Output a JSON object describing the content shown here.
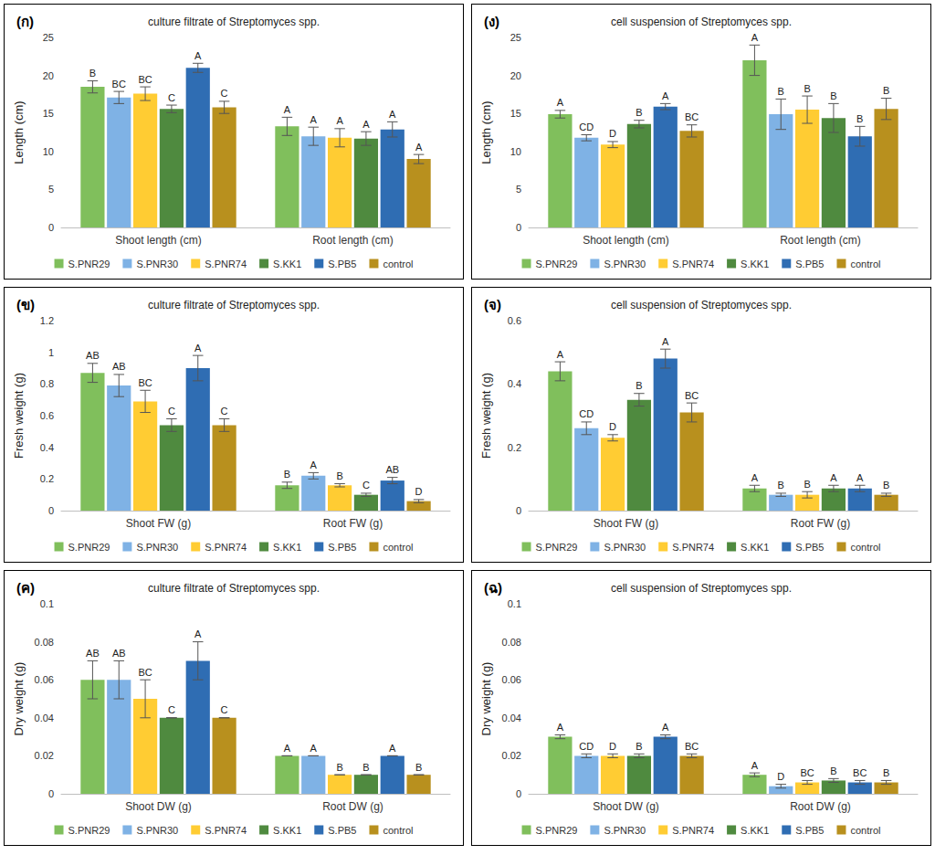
{
  "chart_data": [
    {
      "type": "bar",
      "panel_label": "(ก)",
      "title": "culture filtrate of Streptomyces spp.",
      "ylabel": "Length (cm)",
      "categories": [
        "Shoot length (cm)",
        "Root length (cm)"
      ],
      "series": [
        {
          "name": "S.PNR29",
          "color": "#80bf5c",
          "values": [
            18.5,
            13.3
          ],
          "errors": [
            0.8,
            1.2
          ],
          "letters": [
            "B",
            "A"
          ]
        },
        {
          "name": "S.PNR30",
          "color": "#7fb2e5",
          "values": [
            17.1,
            12.0
          ],
          "errors": [
            0.8,
            1.2
          ],
          "letters": [
            "BC",
            "A"
          ]
        },
        {
          "name": "S.PNR74",
          "color": "#ffcc33",
          "values": [
            17.6,
            11.8
          ],
          "errors": [
            0.9,
            1.2
          ],
          "letters": [
            "BC",
            "A"
          ]
        },
        {
          "name": "S.KK1",
          "color": "#4f8a3f",
          "values": [
            15.6,
            11.7
          ],
          "errors": [
            0.5,
            0.9
          ],
          "letters": [
            "C",
            "A"
          ]
        },
        {
          "name": "S.PB5",
          "color": "#2f6db3",
          "values": [
            21.0,
            12.9
          ],
          "errors": [
            0.6,
            1.0
          ],
          "letters": [
            "A",
            "A"
          ]
        },
        {
          "name": "control",
          "color": "#b8901e",
          "values": [
            15.8,
            9.0
          ],
          "errors": [
            0.8,
            0.6
          ],
          "letters": [
            "C",
            "A"
          ]
        }
      ],
      "ylim": [
        0,
        25
      ],
      "yticks": [
        0,
        5,
        10,
        15,
        20,
        25
      ],
      "grid": false,
      "legend": "bottom"
    },
    {
      "type": "bar",
      "panel_label": "(ง)",
      "title": "cell suspension of Streptomyces spp.",
      "ylabel": "Length (cm)",
      "categories": [
        "Shoot length (cm)",
        "Root length (cm)"
      ],
      "series": [
        {
          "name": "S.PNR29",
          "color": "#80bf5c",
          "values": [
            14.9,
            22.0
          ],
          "errors": [
            0.5,
            2.0
          ],
          "letters": [
            "A",
            "A"
          ]
        },
        {
          "name": "S.PNR30",
          "color": "#7fb2e5",
          "values": [
            11.8,
            14.9
          ],
          "errors": [
            0.4,
            2.0
          ],
          "letters": [
            "CD",
            "B"
          ]
        },
        {
          "name": "S.PNR74",
          "color": "#ffcc33",
          "values": [
            10.9,
            15.5
          ],
          "errors": [
            0.4,
            1.8
          ],
          "letters": [
            "D",
            "B"
          ]
        },
        {
          "name": "S.KK1",
          "color": "#4f8a3f",
          "values": [
            13.6,
            14.4
          ],
          "errors": [
            0.5,
            1.9
          ],
          "letters": [
            "B",
            "B"
          ]
        },
        {
          "name": "S.PB5",
          "color": "#2f6db3",
          "values": [
            15.9,
            12.0
          ],
          "errors": [
            0.4,
            1.3
          ],
          "letters": [
            "A",
            "B"
          ]
        },
        {
          "name": "control",
          "color": "#b8901e",
          "values": [
            12.7,
            15.6
          ],
          "errors": [
            0.8,
            1.4
          ],
          "letters": [
            "BC",
            "B"
          ]
        }
      ],
      "ylim": [
        0,
        25
      ],
      "yticks": [
        0,
        5,
        10,
        15,
        20,
        25
      ],
      "grid": false,
      "legend": "bottom"
    },
    {
      "type": "bar",
      "panel_label": "(ข)",
      "title": "culture filtrate of Streptomyces spp.",
      "ylabel": "Fresh weight (g)",
      "categories": [
        "Shoot FW (g)",
        "Root FW (g)"
      ],
      "series": [
        {
          "name": "S.PNR29",
          "color": "#80bf5c",
          "values": [
            0.87,
            0.16
          ],
          "errors": [
            0.06,
            0.02
          ],
          "letters": [
            "AB",
            "B"
          ]
        },
        {
          "name": "S.PNR30",
          "color": "#7fb2e5",
          "values": [
            0.79,
            0.22
          ],
          "errors": [
            0.07,
            0.02
          ],
          "letters": [
            "AB",
            "A"
          ]
        },
        {
          "name": "S.PNR74",
          "color": "#ffcc33",
          "values": [
            0.69,
            0.16
          ],
          "errors": [
            0.07,
            0.01
          ],
          "letters": [
            "BC",
            "B"
          ]
        },
        {
          "name": "S.KK1",
          "color": "#4f8a3f",
          "values": [
            0.54,
            0.1
          ],
          "errors": [
            0.04,
            0.01
          ],
          "letters": [
            "C",
            "C"
          ]
        },
        {
          "name": "S.PB5",
          "color": "#2f6db3",
          "values": [
            0.9,
            0.19
          ],
          "errors": [
            0.08,
            0.02
          ],
          "letters": [
            "A",
            "AB"
          ]
        },
        {
          "name": "control",
          "color": "#b8901e",
          "values": [
            0.54,
            0.06
          ],
          "errors": [
            0.04,
            0.01
          ],
          "letters": [
            "C",
            "D"
          ]
        }
      ],
      "ylim": [
        0,
        1.2
      ],
      "yticks": [
        0,
        0.2,
        0.4,
        0.6,
        0.8,
        1,
        1.2
      ],
      "grid": false,
      "legend": "bottom"
    },
    {
      "type": "bar",
      "panel_label": "(จ)",
      "title": "cell suspension of Streptomyces spp.",
      "ylabel": "Fresh weight (g)",
      "categories": [
        "Shoot FW (g)",
        "Root FW (g)"
      ],
      "series": [
        {
          "name": "S.PNR29",
          "color": "#80bf5c",
          "values": [
            0.44,
            0.07
          ],
          "errors": [
            0.03,
            0.01
          ],
          "letters": [
            "A",
            "A"
          ]
        },
        {
          "name": "S.PNR30",
          "color": "#7fb2e5",
          "values": [
            0.26,
            0.05
          ],
          "errors": [
            0.02,
            0.005
          ],
          "letters": [
            "CD",
            "B"
          ]
        },
        {
          "name": "S.PNR74",
          "color": "#ffcc33",
          "values": [
            0.23,
            0.05
          ],
          "errors": [
            0.01,
            0.01
          ],
          "letters": [
            "D",
            "B"
          ]
        },
        {
          "name": "S.KK1",
          "color": "#4f8a3f",
          "values": [
            0.35,
            0.07
          ],
          "errors": [
            0.02,
            0.01
          ],
          "letters": [
            "B",
            "A"
          ]
        },
        {
          "name": "S.PB5",
          "color": "#2f6db3",
          "values": [
            0.48,
            0.07
          ],
          "errors": [
            0.03,
            0.01
          ],
          "letters": [
            "A",
            "A"
          ]
        },
        {
          "name": "control",
          "color": "#b8901e",
          "values": [
            0.31,
            0.05
          ],
          "errors": [
            0.03,
            0.005
          ],
          "letters": [
            "BC",
            "B"
          ]
        }
      ],
      "ylim": [
        0,
        0.6
      ],
      "yticks": [
        0,
        0.2,
        0.4,
        0.6
      ],
      "grid": false,
      "legend": "bottom"
    },
    {
      "type": "bar",
      "panel_label": "(ค)",
      "title": "culture filtrate of Streptomyces spp.",
      "ylabel": "Dry weight (g)",
      "categories": [
        "Shoot DW (g)",
        "Root DW (g)"
      ],
      "series": [
        {
          "name": "S.PNR29",
          "color": "#80bf5c",
          "values": [
            0.06,
            0.02
          ],
          "errors": [
            0.01,
            0
          ],
          "letters": [
            "AB",
            "A"
          ]
        },
        {
          "name": "S.PNR30",
          "color": "#7fb2e5",
          "values": [
            0.06,
            0.02
          ],
          "errors": [
            0.01,
            0
          ],
          "letters": [
            "AB",
            "A"
          ]
        },
        {
          "name": "S.PNR74",
          "color": "#ffcc33",
          "values": [
            0.05,
            0.01
          ],
          "errors": [
            0.01,
            0
          ],
          "letters": [
            "BC",
            "B"
          ]
        },
        {
          "name": "S.KK1",
          "color": "#4f8a3f",
          "values": [
            0.04,
            0.01
          ],
          "errors": [
            0,
            0
          ],
          "letters": [
            "C",
            "B"
          ]
        },
        {
          "name": "S.PB5",
          "color": "#2f6db3",
          "values": [
            0.07,
            0.02
          ],
          "errors": [
            0.01,
            0
          ],
          "letters": [
            "A",
            "A"
          ]
        },
        {
          "name": "control",
          "color": "#b8901e",
          "values": [
            0.04,
            0.01
          ],
          "errors": [
            0,
            0
          ],
          "letters": [
            "C",
            "B"
          ]
        }
      ],
      "ylim": [
        0,
        0.1
      ],
      "yticks": [
        0,
        0.02,
        0.04,
        0.06,
        0.08,
        0.1
      ],
      "grid": false,
      "legend": "bottom"
    },
    {
      "type": "bar",
      "panel_label": "(ฉ)",
      "title": "cell suspension of Streptomyces spp.",
      "ylabel": "Dry weight (g)",
      "categories": [
        "Shoot DW (g)",
        "Root DW (g)"
      ],
      "series": [
        {
          "name": "S.PNR29",
          "color": "#80bf5c",
          "values": [
            0.03,
            0.01
          ],
          "errors": [
            0.001,
            0.001
          ],
          "letters": [
            "A",
            "A"
          ]
        },
        {
          "name": "S.PNR30",
          "color": "#7fb2e5",
          "values": [
            0.02,
            0.004
          ],
          "errors": [
            0.001,
            0.001
          ],
          "letters": [
            "CD",
            "D"
          ]
        },
        {
          "name": "S.PNR74",
          "color": "#ffcc33",
          "values": [
            0.02,
            0.006
          ],
          "errors": [
            0.001,
            0.001
          ],
          "letters": [
            "D",
            "BC"
          ]
        },
        {
          "name": "S.KK1",
          "color": "#4f8a3f",
          "values": [
            0.02,
            0.007
          ],
          "errors": [
            0.001,
            0.001
          ],
          "letters": [
            "B",
            "B"
          ]
        },
        {
          "name": "S.PB5",
          "color": "#2f6db3",
          "values": [
            0.03,
            0.006
          ],
          "errors": [
            0.001,
            0.001
          ],
          "letters": [
            "A",
            "BC"
          ]
        },
        {
          "name": "control",
          "color": "#b8901e",
          "values": [
            0.02,
            0.006
          ],
          "errors": [
            0.001,
            0.001
          ],
          "letters": [
            "BC",
            "B"
          ]
        }
      ],
      "ylim": [
        0,
        0.1
      ],
      "yticks": [
        0,
        0.02,
        0.04,
        0.06,
        0.08,
        0.1
      ],
      "grid": false,
      "legend": "bottom"
    }
  ]
}
